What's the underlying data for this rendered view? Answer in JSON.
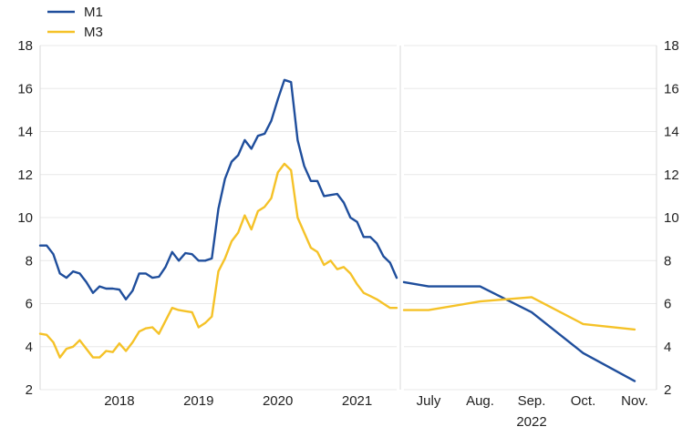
{
  "chart_data": {
    "type": "line",
    "legend": {
      "placement": "top-left",
      "entries": [
        {
          "label": "M1",
          "color": "#1f4e9c"
        },
        {
          "label": "M3",
          "color": "#f5c228"
        }
      ]
    },
    "ylim": [
      2,
      18
    ],
    "yticks": [
      "2",
      "4",
      "6",
      "8",
      "10",
      "12",
      "14",
      "16",
      "18"
    ],
    "left_panel": {
      "xlim": [
        2017.5,
        2022.0
      ],
      "xtick_labels": [
        {
          "label": "2018",
          "x": 2018.5
        },
        {
          "label": "2019",
          "x": 2019.5
        },
        {
          "label": "2020",
          "x": 2020.5
        },
        {
          "label": "2021",
          "x": 2021.5
        }
      ],
      "series": [
        {
          "name": "M1",
          "color": "#1f4e9c",
          "points": [
            [
              2017.5,
              8.7
            ],
            [
              2017.583,
              8.7
            ],
            [
              2017.667,
              8.3
            ],
            [
              2017.75,
              7.4
            ],
            [
              2017.833,
              7.2
            ],
            [
              2017.917,
              7.5
            ],
            [
              2018.0,
              7.4
            ],
            [
              2018.083,
              7.0
            ],
            [
              2018.167,
              6.5
            ],
            [
              2018.25,
              6.8
            ],
            [
              2018.333,
              6.7
            ],
            [
              2018.417,
              6.7
            ],
            [
              2018.5,
              6.65
            ],
            [
              2018.583,
              6.2
            ],
            [
              2018.667,
              6.6
            ],
            [
              2018.75,
              7.4
            ],
            [
              2018.833,
              7.4
            ],
            [
              2018.917,
              7.2
            ],
            [
              2019.0,
              7.25
            ],
            [
              2019.083,
              7.7
            ],
            [
              2019.167,
              8.4
            ],
            [
              2019.25,
              8.0
            ],
            [
              2019.333,
              8.35
            ],
            [
              2019.417,
              8.3
            ],
            [
              2019.5,
              8.0
            ],
            [
              2019.583,
              8.0
            ],
            [
              2019.667,
              8.1
            ],
            [
              2019.75,
              10.4
            ],
            [
              2019.833,
              11.8
            ],
            [
              2019.917,
              12.6
            ],
            [
              2020.0,
              12.9
            ],
            [
              2020.083,
              13.6
            ],
            [
              2020.167,
              13.2
            ],
            [
              2020.25,
              13.8
            ],
            [
              2020.333,
              13.9
            ],
            [
              2020.417,
              14.5
            ],
            [
              2020.5,
              15.5
            ],
            [
              2020.583,
              16.4
            ],
            [
              2020.667,
              16.3
            ],
            [
              2020.75,
              13.6
            ],
            [
              2020.833,
              12.4
            ],
            [
              2020.917,
              11.7
            ],
            [
              2021.0,
              11.7
            ],
            [
              2021.083,
              11.0
            ],
            [
              2021.167,
              11.05
            ],
            [
              2021.25,
              11.1
            ],
            [
              2021.333,
              10.7
            ],
            [
              2021.417,
              10.0
            ],
            [
              2021.5,
              9.8
            ],
            [
              2021.583,
              9.1
            ],
            [
              2021.667,
              9.1
            ],
            [
              2021.75,
              8.8
            ],
            [
              2021.833,
              8.2
            ],
            [
              2021.917,
              7.9
            ],
            [
              2022.0,
              7.2
            ]
          ]
        },
        {
          "name": "M3",
          "color": "#f5c228",
          "points": [
            [
              2017.5,
              4.6
            ],
            [
              2017.583,
              4.55
            ],
            [
              2017.667,
              4.2
            ],
            [
              2017.75,
              3.5
            ],
            [
              2017.833,
              3.9
            ],
            [
              2017.917,
              4.0
            ],
            [
              2018.0,
              4.3
            ],
            [
              2018.083,
              3.9
            ],
            [
              2018.167,
              3.5
            ],
            [
              2018.25,
              3.5
            ],
            [
              2018.333,
              3.8
            ],
            [
              2018.417,
              3.75
            ],
            [
              2018.5,
              4.15
            ],
            [
              2018.583,
              3.8
            ],
            [
              2018.667,
              4.2
            ],
            [
              2018.75,
              4.7
            ],
            [
              2018.833,
              4.85
            ],
            [
              2018.917,
              4.9
            ],
            [
              2019.0,
              4.6
            ],
            [
              2019.083,
              5.2
            ],
            [
              2019.167,
              5.8
            ],
            [
              2019.25,
              5.7
            ],
            [
              2019.333,
              5.65
            ],
            [
              2019.417,
              5.6
            ],
            [
              2019.5,
              4.9
            ],
            [
              2019.583,
              5.1
            ],
            [
              2019.667,
              5.4
            ],
            [
              2019.75,
              7.5
            ],
            [
              2019.833,
              8.1
            ],
            [
              2019.917,
              8.9
            ],
            [
              2020.0,
              9.3
            ],
            [
              2020.083,
              10.1
            ],
            [
              2020.167,
              9.45
            ],
            [
              2020.25,
              10.3
            ],
            [
              2020.333,
              10.5
            ],
            [
              2020.417,
              10.9
            ],
            [
              2020.5,
              12.1
            ],
            [
              2020.583,
              12.5
            ],
            [
              2020.667,
              12.2
            ],
            [
              2020.75,
              10.0
            ],
            [
              2020.833,
              9.3
            ],
            [
              2020.917,
              8.6
            ],
            [
              2021.0,
              8.4
            ],
            [
              2021.083,
              7.8
            ],
            [
              2021.167,
              8.0
            ],
            [
              2021.25,
              7.6
            ],
            [
              2021.333,
              7.7
            ],
            [
              2021.417,
              7.4
            ],
            [
              2021.5,
              6.9
            ],
            [
              2021.583,
              6.5
            ],
            [
              2021.667,
              6.35
            ],
            [
              2021.75,
              6.2
            ],
            [
              2021.833,
              6.0
            ],
            [
              2021.917,
              5.8
            ],
            [
              2022.0,
              5.8
            ]
          ]
        }
      ]
    },
    "right_panel": {
      "categories": [
        "July",
        "Aug.",
        "Sep.",
        "Oct.",
        "Nov."
      ],
      "year_label": "2022",
      "series": [
        {
          "name": "M1",
          "color": "#1f4e9c",
          "points": [
            [
              0,
              7.0
            ],
            [
              0.5,
              6.8
            ],
            [
              1.5,
              6.8
            ],
            [
              2.5,
              5.6
            ],
            [
              3.5,
              3.7
            ],
            [
              4.5,
              2.4
            ]
          ]
        },
        {
          "name": "M3",
          "color": "#f5c228",
          "points": [
            [
              0,
              5.7
            ],
            [
              0.5,
              5.7
            ],
            [
              1.5,
              6.1
            ],
            [
              2.5,
              6.3
            ],
            [
              3.5,
              5.05
            ],
            [
              4.5,
              4.8
            ]
          ]
        }
      ]
    }
  }
}
